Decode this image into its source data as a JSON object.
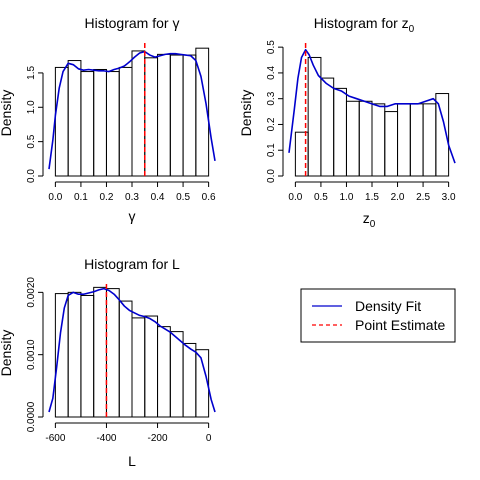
{
  "chart_data": [
    {
      "type": "bar",
      "title": "Histogram for γ",
      "xlabel": "γ",
      "ylabel": "Density",
      "xlim": [
        -0.025,
        0.625
      ],
      "ylim": [
        0,
        1.95
      ],
      "x_ticks": [
        "0.0",
        "0.1",
        "0.2",
        "0.3",
        "0.4",
        "0.5",
        "0.6"
      ],
      "y_ticks": [
        "0.0",
        "0.5",
        "1.0",
        "1.5"
      ],
      "x_tick_values": [
        0,
        0.1,
        0.2,
        0.3,
        0.4,
        0.5,
        0.6
      ],
      "y_tick_values": [
        0,
        0.5,
        1.0,
        1.5
      ],
      "bin_edges": [
        0.0,
        0.05,
        0.1,
        0.15,
        0.2,
        0.25,
        0.3,
        0.35,
        0.4,
        0.45,
        0.5,
        0.55,
        0.6
      ],
      "values": [
        1.58,
        1.68,
        1.52,
        1.55,
        1.52,
        1.58,
        1.82,
        1.72,
        1.77,
        1.76,
        1.76,
        1.86
      ],
      "density_fit": {
        "x": [
          -0.025,
          -0.01,
          0.0,
          0.015,
          0.03,
          0.05,
          0.07,
          0.09,
          0.11,
          0.13,
          0.15,
          0.17,
          0.19,
          0.21,
          0.23,
          0.25,
          0.27,
          0.29,
          0.31,
          0.33,
          0.35,
          0.37,
          0.39,
          0.41,
          0.43,
          0.45,
          0.47,
          0.49,
          0.51,
          0.53,
          0.55,
          0.57,
          0.59,
          0.61,
          0.625
        ],
        "y": [
          0.1,
          0.52,
          0.88,
          1.28,
          1.52,
          1.64,
          1.62,
          1.56,
          1.54,
          1.55,
          1.54,
          1.53,
          1.53,
          1.52,
          1.55,
          1.57,
          1.6,
          1.66,
          1.73,
          1.79,
          1.81,
          1.76,
          1.73,
          1.75,
          1.77,
          1.78,
          1.78,
          1.77,
          1.76,
          1.75,
          1.68,
          1.45,
          1.05,
          0.55,
          0.22
        ]
      },
      "point_estimate": 0.35
    },
    {
      "type": "bar",
      "title": "Histogram for z0",
      "title_main": "Histogram for z",
      "title_sub": "0",
      "xlabel": "z0",
      "xlabel_main": "z",
      "xlabel_sub": "0",
      "ylabel": "Density",
      "xlim": [
        -0.125,
        3.125
      ],
      "ylim": [
        0,
        0.52
      ],
      "x_ticks": [
        "0.0",
        "0.5",
        "1.0",
        "1.5",
        "2.0",
        "2.5",
        "3.0"
      ],
      "y_ticks": [
        "0.0",
        "0.1",
        "0.2",
        "0.3",
        "0.4",
        "0.5"
      ],
      "x_tick_values": [
        0,
        0.5,
        1.0,
        1.5,
        2.0,
        2.5,
        3.0
      ],
      "y_tick_values": [
        0,
        0.1,
        0.2,
        0.3,
        0.4,
        0.5
      ],
      "bin_edges": [
        0.0,
        0.25,
        0.5,
        0.75,
        1.0,
        1.25,
        1.5,
        1.75,
        2.0,
        2.25,
        2.5,
        2.75,
        3.0
      ],
      "values": [
        0.17,
        0.46,
        0.38,
        0.34,
        0.29,
        0.29,
        0.28,
        0.25,
        0.28,
        0.28,
        0.28,
        0.32
      ],
      "density_fit": {
        "x": [
          -0.125,
          -0.02,
          0.05,
          0.12,
          0.2,
          0.27,
          0.35,
          0.45,
          0.6,
          0.75,
          0.9,
          1.05,
          1.2,
          1.35,
          1.5,
          1.65,
          1.8,
          1.95,
          2.1,
          2.25,
          2.4,
          2.55,
          2.7,
          2.8,
          2.9,
          3.0,
          3.125
        ],
        "y": [
          0.09,
          0.26,
          0.38,
          0.46,
          0.49,
          0.47,
          0.43,
          0.39,
          0.36,
          0.34,
          0.33,
          0.31,
          0.3,
          0.29,
          0.28,
          0.27,
          0.27,
          0.28,
          0.28,
          0.28,
          0.28,
          0.29,
          0.3,
          0.28,
          0.21,
          0.12,
          0.05
        ]
      },
      "point_estimate": 0.2
    },
    {
      "type": "bar",
      "title": "Histogram for L",
      "xlabel": "L",
      "ylabel": "Density",
      "xlim": [
        -625,
        25
      ],
      "ylim": [
        0,
        0.00215
      ],
      "x_ticks": [
        "-600",
        "-400",
        "-200",
        "0"
      ],
      "y_ticks": [
        "0.0000",
        "0.0010",
        "0.0020"
      ],
      "x_tick_values": [
        -600,
        -400,
        -200,
        0
      ],
      "y_tick_values": [
        0,
        0.001,
        0.002
      ],
      "bin_edges": [
        -600,
        -550,
        -500,
        -450,
        -400,
        -350,
        -300,
        -250,
        -200,
        -150,
        -100,
        -50,
        0
      ],
      "values": [
        0.00198,
        0.002,
        0.00195,
        0.00208,
        0.00206,
        0.00186,
        0.00159,
        0.00162,
        0.00145,
        0.00137,
        0.00118,
        0.00108
      ],
      "density_fit": {
        "x": [
          -625,
          -610,
          -595,
          -580,
          -565,
          -550,
          -530,
          -510,
          -490,
          -470,
          -450,
          -430,
          -410,
          -390,
          -370,
          -350,
          -330,
          -310,
          -290,
          -270,
          -250,
          -230,
          -210,
          -190,
          -170,
          -150,
          -130,
          -110,
          -90,
          -70,
          -50,
          -30,
          -10,
          10,
          25
        ],
        "y": [
          8e-05,
          0.0003,
          0.0008,
          0.00135,
          0.00175,
          0.00195,
          0.002,
          0.00197,
          0.00197,
          0.00199,
          0.00201,
          0.00204,
          0.00206,
          0.00203,
          0.00197,
          0.00188,
          0.00178,
          0.00171,
          0.00167,
          0.00163,
          0.00161,
          0.00158,
          0.00153,
          0.00146,
          0.00141,
          0.00136,
          0.00129,
          0.00122,
          0.00115,
          0.00109,
          0.00104,
          0.00095,
          0.00065,
          0.00028,
          8e-05
        ]
      },
      "point_estimate": -400
    }
  ],
  "legend": {
    "placement": "center-right",
    "items": [
      {
        "label": "Density Fit",
        "color": "#0000cd",
        "style": "solid"
      },
      {
        "label": "Point Estimate",
        "color": "#ff0000",
        "style": "dashed"
      }
    ]
  },
  "colors": {
    "density": "#0000cd",
    "estimate": "#ff0000",
    "bars": "#000000"
  }
}
